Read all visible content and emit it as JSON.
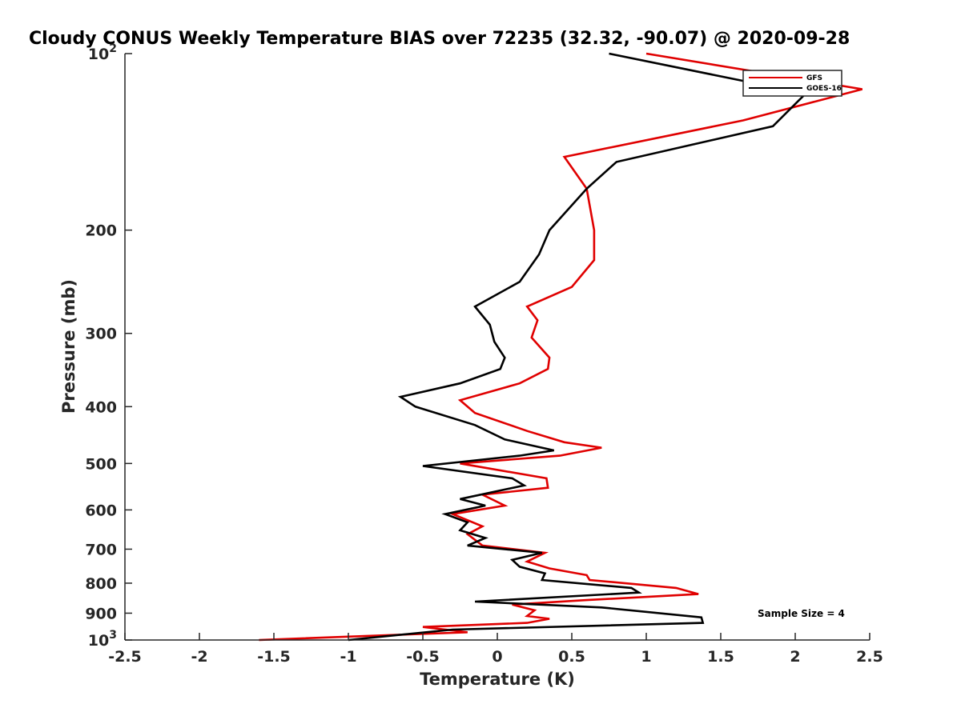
{
  "chart_data": {
    "type": "line",
    "title": "Cloudy CONUS Weekly Temperature BIAS over 72235 (32.32, -90.07) @ 2020-09-28",
    "xlabel": "Temperature (K)",
    "ylabel": "Pressure (mb)",
    "xlim": [
      -2.5,
      2.5
    ],
    "ylim": [
      100,
      1000
    ],
    "yscale": "log",
    "x_ticks": [
      -2.5,
      -2,
      -1.5,
      -1,
      -0.5,
      0,
      0.5,
      1,
      1.5,
      2,
      2.5
    ],
    "x_tick_labels": [
      "-2.5",
      "-2",
      "-1.5",
      "-1",
      "-0.5",
      "0",
      "0.5",
      "1",
      "1.5",
      "2",
      "2.5"
    ],
    "y_ticks": [
      {
        "value": 100,
        "base": "10",
        "exp": "2"
      },
      {
        "value": 200,
        "label": "200"
      },
      {
        "value": 300,
        "label": "300"
      },
      {
        "value": 400,
        "label": "400"
      },
      {
        "value": 500,
        "label": "500"
      },
      {
        "value": 600,
        "label": "600"
      },
      {
        "value": 700,
        "label": "700"
      },
      {
        "value": 800,
        "label": "800"
      },
      {
        "value": 900,
        "label": "900"
      },
      {
        "value": 1000,
        "base": "10",
        "exp": "3"
      }
    ],
    "legend_position": "top-right",
    "annotation": "Sample Size = 4",
    "series": [
      {
        "name": "GFS",
        "color": "#e00000",
        "points": [
          [
            1.0,
            100
          ],
          [
            2.45,
            115
          ],
          [
            1.65,
            130
          ],
          [
            0.45,
            150
          ],
          [
            0.6,
            170
          ],
          [
            0.65,
            200
          ],
          [
            0.65,
            225
          ],
          [
            0.5,
            250
          ],
          [
            0.2,
            270
          ],
          [
            0.27,
            285
          ],
          [
            0.23,
            305
          ],
          [
            0.35,
            330
          ],
          [
            0.34,
            345
          ],
          [
            0.15,
            365
          ],
          [
            -0.25,
            390
          ],
          [
            -0.15,
            410
          ],
          [
            0.2,
            440
          ],
          [
            0.45,
            460
          ],
          [
            0.7,
            470
          ],
          [
            0.42,
            485
          ],
          [
            -0.25,
            500
          ],
          [
            0.33,
            530
          ],
          [
            0.34,
            550
          ],
          [
            -0.1,
            565
          ],
          [
            0.05,
            590
          ],
          [
            -0.3,
            610
          ],
          [
            -0.1,
            640
          ],
          [
            -0.2,
            660
          ],
          [
            -0.1,
            690
          ],
          [
            0.32,
            710
          ],
          [
            0.2,
            735
          ],
          [
            0.35,
            755
          ],
          [
            0.6,
            775
          ],
          [
            0.62,
            790
          ],
          [
            1.2,
            815
          ],
          [
            1.35,
            835
          ],
          [
            0.6,
            855
          ],
          [
            0.1,
            870
          ],
          [
            0.25,
            890
          ],
          [
            0.2,
            910
          ],
          [
            0.35,
            920
          ],
          [
            0.2,
            935
          ],
          [
            -0.5,
            950
          ],
          [
            -0.2,
            970
          ],
          [
            -1.6,
            1000
          ]
        ]
      },
      {
        "name": "GOES-16",
        "color": "#000000",
        "points": [
          [
            0.75,
            100
          ],
          [
            2.07,
            117
          ],
          [
            1.85,
            133
          ],
          [
            0.8,
            153
          ],
          [
            0.6,
            170
          ],
          [
            0.35,
            200
          ],
          [
            0.28,
            220
          ],
          [
            0.15,
            245
          ],
          [
            -0.15,
            270
          ],
          [
            -0.05,
            290
          ],
          [
            -0.02,
            310
          ],
          [
            0.05,
            330
          ],
          [
            0.02,
            345
          ],
          [
            -0.25,
            365
          ],
          [
            -0.65,
            385
          ],
          [
            -0.55,
            400
          ],
          [
            -0.15,
            430
          ],
          [
            0.05,
            455
          ],
          [
            0.38,
            475
          ],
          [
            0.15,
            485
          ],
          [
            -0.5,
            505
          ],
          [
            0.1,
            530
          ],
          [
            0.18,
            545
          ],
          [
            -0.25,
            575
          ],
          [
            -0.08,
            590
          ],
          [
            -0.35,
            610
          ],
          [
            -0.2,
            630
          ],
          [
            -0.25,
            650
          ],
          [
            -0.08,
            670
          ],
          [
            -0.2,
            690
          ],
          [
            0.3,
            710
          ],
          [
            0.1,
            730
          ],
          [
            0.15,
            750
          ],
          [
            0.32,
            770
          ],
          [
            0.3,
            790
          ],
          [
            0.9,
            815
          ],
          [
            0.95,
            830
          ],
          [
            -0.15,
            860
          ],
          [
            0.7,
            880
          ],
          [
            1.37,
            915
          ],
          [
            1.38,
            935
          ],
          [
            -0.3,
            960
          ],
          [
            -1.0,
            1000
          ]
        ]
      }
    ]
  }
}
